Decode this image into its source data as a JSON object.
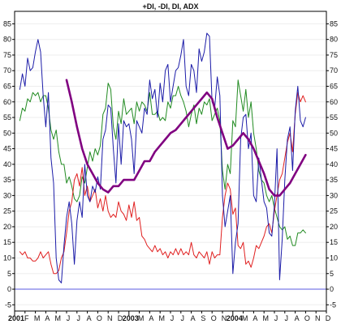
{
  "chart_data": {
    "type": "line",
    "title": "+DI, -DI, DI, ADX",
    "xlabel": "",
    "ylabel": "",
    "xlim": [
      0,
      60
    ],
    "ylim": [
      -7,
      89
    ],
    "yticks": [
      -5,
      0,
      5,
      10,
      15,
      20,
      25,
      30,
      35,
      40,
      45,
      50,
      55,
      60,
      65,
      70,
      75,
      80,
      85
    ],
    "xticks": [
      {
        "label": "2001",
        "x": 0,
        "year": true
      },
      {
        "label": "F",
        "x": 2
      },
      {
        "label": "M",
        "x": 4
      },
      {
        "label": "A",
        "x": 6
      },
      {
        "label": "M",
        "x": 8
      },
      {
        "label": "J",
        "x": 10
      },
      {
        "label": "J",
        "x": 12
      },
      {
        "label": "A",
        "x": 14
      },
      {
        "label": "O",
        "x": 16
      },
      {
        "label": "N",
        "x": 18
      },
      {
        "label": "D",
        "x": 20
      },
      {
        "label": "2003",
        "x": 22,
        "year": true
      },
      {
        "label": "M",
        "x": 24
      },
      {
        "label": "A",
        "x": 26
      },
      {
        "label": "M",
        "x": 28
      },
      {
        "label": "J",
        "x": 30
      },
      {
        "label": "J",
        "x": 32
      },
      {
        "label": "A",
        "x": 34
      },
      {
        "label": "S",
        "x": 36
      },
      {
        "label": "O",
        "x": 38
      },
      {
        "label": "N",
        "x": 40
      },
      {
        "label": "2004",
        "x": 42,
        "year": true
      },
      {
        "label": "M",
        "x": 44
      },
      {
        "label": "A",
        "x": 46
      },
      {
        "label": "M",
        "x": 48
      },
      {
        "label": "J",
        "x": 50
      },
      {
        "label": "J",
        "x": 52
      },
      {
        "label": "A",
        "x": 54
      },
      {
        "label": "O",
        "x": 56
      },
      {
        "label": "N",
        "x": 58
      },
      {
        "label": "D",
        "x": 60
      }
    ],
    "baseline": {
      "y": 0,
      "color": "#5a5ae0"
    },
    "series": [
      {
        "color": "#228b22",
        "x": [
          1,
          1.5,
          2,
          2.5,
          3,
          3.5,
          4,
          4.5,
          5,
          5.5,
          6,
          6.5,
          7,
          7.5,
          8,
          8.5,
          9,
          9.5,
          10,
          10.5,
          11,
          11.5,
          12,
          12.5,
          13,
          13.5,
          14,
          14.5,
          15,
          15.5,
          16,
          16.5,
          17,
          17.5,
          18,
          18.5,
          19,
          19.5,
          20,
          20.5,
          21,
          21.5,
          22,
          22.5,
          23,
          23.5,
          24,
          24.5,
          25,
          25.5,
          26,
          26.5,
          27,
          27.5,
          28,
          28.5,
          29,
          29.5,
          30,
          30.5,
          31,
          31.5,
          32,
          32.5,
          33,
          33.5,
          34,
          34.5,
          35,
          35.5,
          36,
          36.5,
          37,
          37.5,
          38,
          38.5,
          39,
          39.5,
          40,
          40.5,
          41,
          41.5,
          42,
          42.5,
          43,
          43.5,
          44,
          44.5,
          45,
          45.5,
          46,
          46.5,
          47,
          47.5,
          48,
          48.5,
          49,
          49.5,
          50,
          50.5,
          51,
          51.5,
          52,
          52.5,
          53,
          53.5,
          54,
          54.5,
          55,
          55.5,
          56
        ],
        "values": [
          54,
          58,
          57,
          61,
          60,
          63,
          62,
          63,
          60,
          62,
          62,
          58,
          51,
          48,
          51,
          44,
          40,
          40,
          34,
          36,
          33,
          29,
          28,
          30,
          36,
          34,
          39,
          44,
          41,
          45,
          43,
          46,
          56,
          58,
          66,
          64,
          52,
          48,
          57,
          53,
          61,
          56,
          57,
          58,
          53,
          60,
          57,
          60,
          59,
          57,
          63,
          56,
          56,
          57,
          54,
          55,
          54,
          60,
          58,
          62,
          62,
          65,
          62,
          60,
          57,
          52,
          56,
          59,
          53,
          58,
          56,
          60,
          59,
          61,
          54,
          56,
          58,
          54,
          38,
          32,
          40,
          37,
          54,
          52,
          67,
          62,
          57,
          64,
          55,
          60,
          50,
          45,
          38,
          35,
          34,
          30,
          28,
          30,
          26,
          23,
          20,
          19,
          20,
          16,
          17,
          14,
          14,
          18,
          18,
          19,
          18
        ]
      },
      {
        "color": "#e02020",
        "x": [
          1,
          1.5,
          2,
          2.5,
          3,
          3.5,
          4,
          4.5,
          5,
          5.5,
          6,
          6.5,
          7,
          7.5,
          8,
          8.5,
          9,
          9.5,
          10,
          10.5,
          11,
          11.5,
          12,
          12.5,
          13,
          13.5,
          14,
          14.5,
          15,
          15.5,
          16,
          16.5,
          17,
          17.5,
          18,
          18.5,
          19,
          19.5,
          20,
          20.5,
          21,
          21.5,
          22,
          22.5,
          23,
          23.5,
          24,
          24.5,
          25,
          25.5,
          26,
          26.5,
          27,
          27.5,
          28,
          28.5,
          29,
          29.5,
          30,
          30.5,
          31,
          31.5,
          32,
          32.5,
          33,
          33.5,
          34,
          34.5,
          35,
          35.5,
          36,
          36.5,
          37,
          37.5,
          38,
          38.5,
          39,
          39.5,
          40,
          40.5,
          41,
          41.5,
          42,
          42.5,
          43,
          43.5,
          44,
          44.5,
          45,
          45.5,
          46,
          46.5,
          47,
          47.5,
          48,
          48.5,
          49,
          49.5,
          50,
          50.5,
          51,
          51.5,
          52,
          52.5,
          53,
          53.5,
          54,
          54.5,
          55,
          55.5,
          56
        ],
        "values": [
          12,
          11,
          12,
          10,
          10,
          9,
          9,
          10,
          12,
          10,
          11,
          12,
          8,
          5,
          5,
          6,
          10,
          12,
          18,
          25,
          28,
          35,
          37,
          33,
          39,
          30,
          33,
          28,
          30,
          32,
          26,
          29,
          25,
          30,
          25,
          23,
          24,
          23,
          28,
          25,
          24,
          22,
          27,
          23,
          28,
          22,
          23,
          17,
          16,
          14,
          13,
          12,
          14,
          12,
          13,
          11,
          12,
          10,
          12,
          11,
          13,
          11,
          13,
          11,
          12,
          11,
          15,
          11,
          10,
          12,
          11,
          10,
          12,
          8,
          12,
          10,
          11,
          11,
          23,
          30,
          34,
          32,
          24,
          26,
          14,
          13,
          15,
          8,
          9,
          7,
          10,
          14,
          13,
          15,
          17,
          20,
          21,
          18,
          25,
          30,
          35,
          37,
          42,
          47,
          50,
          44,
          56,
          63,
          60,
          62,
          60
        ]
      },
      {
        "color": "#1c1ca8",
        "x": [
          1,
          1.5,
          2,
          2.5,
          3,
          3.5,
          4,
          4.5,
          5,
          5.5,
          6,
          6.5,
          7,
          7.5,
          8,
          8.5,
          9,
          9.5,
          10,
          10.5,
          11,
          11.5,
          12,
          12.5,
          13,
          13.5,
          14,
          14.5,
          15,
          15.5,
          16,
          16.5,
          17,
          17.5,
          18,
          18.5,
          19,
          19.5,
          20,
          20.5,
          21,
          21.5,
          22,
          22.5,
          23,
          23.5,
          24,
          24.5,
          25,
          25.5,
          26,
          26.5,
          27,
          27.5,
          28,
          28.5,
          29,
          29.5,
          30,
          30.5,
          31,
          31.5,
          32,
          32.5,
          33,
          33.5,
          34,
          34.5,
          35,
          35.5,
          36,
          36.5,
          37,
          37.5,
          38,
          38.5,
          39,
          39.5,
          40,
          40.5,
          41,
          41.5,
          42,
          42.5,
          43,
          43.5,
          44,
          44.5,
          45,
          45.5,
          46,
          46.5,
          47,
          47.5,
          48,
          48.5,
          49,
          49.5,
          50,
          50.5,
          51,
          51.5,
          52,
          52.5,
          53,
          53.5,
          54,
          54.5,
          55,
          55.5,
          56
        ],
        "values": [
          64,
          69,
          65,
          74,
          70,
          71,
          76,
          80,
          76,
          62,
          52,
          63,
          42,
          34,
          10,
          3,
          2,
          14,
          23,
          28,
          21,
          8,
          22,
          28,
          23,
          40,
          30,
          28,
          33,
          31,
          36,
          32,
          48,
          51,
          59,
          58,
          45,
          34,
          53,
          40,
          54,
          52,
          53,
          48,
          37,
          54,
          52,
          50,
          58,
          56,
          67,
          61,
          64,
          55,
          66,
          60,
          70,
          72,
          60,
          65,
          70,
          71,
          75,
          80,
          65,
          62,
          72,
          70,
          63,
          77,
          73,
          76,
          82,
          81,
          60,
          58,
          68,
          62,
          30,
          20,
          25,
          30,
          5,
          15,
          21,
          48,
          55,
          56,
          45,
          50,
          30,
          28,
          42,
          35,
          28,
          26,
          18,
          17,
          27,
          45,
          3,
          16,
          35,
          48,
          52,
          38,
          57,
          65,
          54,
          52,
          55
        ]
      },
      {
        "color": "#800080",
        "bold": true,
        "x": [
          10,
          11,
          12,
          13,
          14,
          15,
          16,
          17,
          18,
          19,
          20,
          21,
          22,
          23,
          24,
          25,
          26,
          27,
          28,
          29,
          30,
          31,
          32,
          33,
          34,
          35,
          36,
          37,
          38,
          39,
          40,
          41,
          42,
          43,
          44,
          45,
          46,
          47,
          48,
          49,
          50,
          51,
          52,
          53,
          54,
          55,
          56
        ],
        "values": [
          67,
          60,
          52,
          45,
          40,
          37,
          34,
          32,
          31,
          33,
          33,
          35,
          35,
          35,
          38,
          41,
          41,
          44,
          46,
          48,
          50,
          51,
          53,
          55,
          57,
          59,
          61,
          63,
          61,
          55,
          50,
          45,
          46,
          48,
          50,
          48,
          45,
          41,
          37,
          32,
          30,
          30,
          32,
          34,
          37,
          40,
          43
        ]
      }
    ]
  }
}
